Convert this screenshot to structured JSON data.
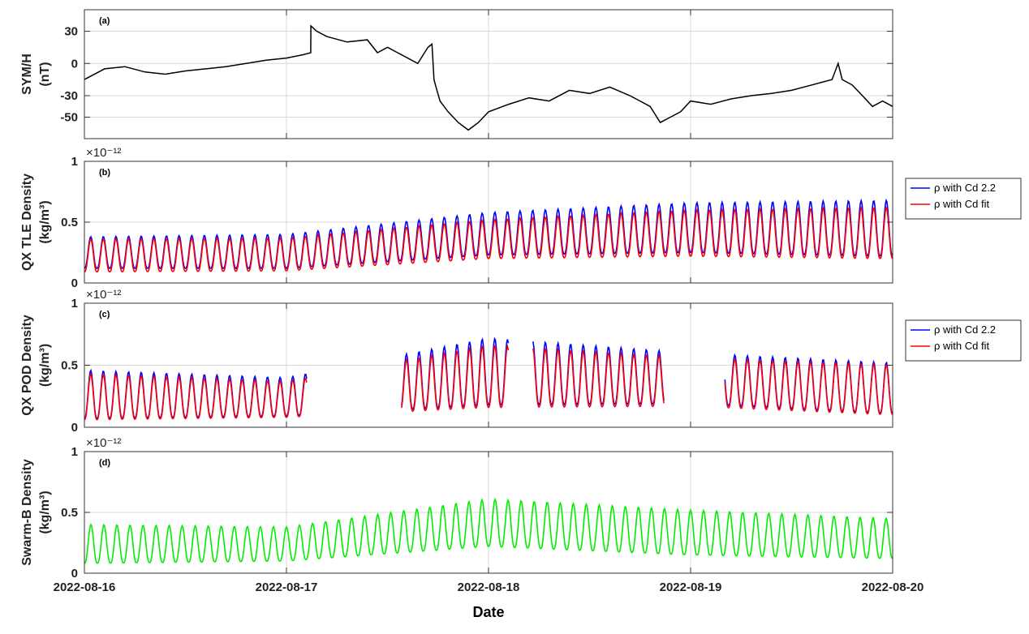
{
  "chart_data": [
    {
      "panel_label": "(a)",
      "type": "line",
      "ylabel": [
        "SYM/H",
        "(nT)"
      ],
      "ylim": [
        -70,
        50
      ],
      "yticks": [
        30,
        0,
        -30,
        -50
      ],
      "ytick_labels": [
        "30",
        "0",
        "-30",
        "-50"
      ],
      "x_range": [
        "2022-08-16",
        "2022-08-20"
      ],
      "xticks": [
        "2022-08-16",
        "2022-08-17",
        "2022-08-18",
        "2022-08-19",
        "2022-08-20"
      ],
      "grid": true,
      "series": [
        {
          "color": "#000000",
          "x_days": [
            0,
            0.1,
            0.2,
            0.3,
            0.4,
            0.5,
            0.6,
            0.7,
            0.8,
            0.9,
            1.0,
            1.08,
            1.12,
            1.121,
            1.15,
            1.2,
            1.3,
            1.4,
            1.45,
            1.5,
            1.55,
            1.6,
            1.65,
            1.7,
            1.72,
            1.73,
            1.74,
            1.76,
            1.8,
            1.85,
            1.9,
            1.95,
            2.0,
            2.1,
            2.2,
            2.3,
            2.4,
            2.5,
            2.6,
            2.7,
            2.8,
            2.85,
            2.9,
            2.95,
            3.0,
            3.1,
            3.2,
            3.3,
            3.4,
            3.5,
            3.6,
            3.7,
            3.72,
            3.73,
            3.75,
            3.8,
            3.85,
            3.9,
            3.95,
            4.0
          ],
          "y": [
            -15,
            -5,
            -3,
            -8,
            -10,
            -7,
            -5,
            -3,
            0,
            3,
            5,
            8,
            10,
            35,
            30,
            25,
            20,
            22,
            10,
            15,
            10,
            5,
            0,
            15,
            18,
            -15,
            -22,
            -35,
            -45,
            -55,
            -62,
            -55,
            -45,
            -38,
            -32,
            -35,
            -25,
            -28,
            -22,
            -30,
            -40,
            -55,
            -50,
            -45,
            -35,
            -38,
            -33,
            -30,
            -28,
            -25,
            -20,
            -15,
            -5,
            0,
            -15,
            -20,
            -30,
            -40,
            -35,
            -40
          ]
        }
      ]
    },
    {
      "panel_label": "(b)",
      "type": "line",
      "ylabel": [
        "QX TLE Density",
        "(kg/m³)"
      ],
      "exponent_label": "×10⁻¹²",
      "ylim": [
        0,
        1
      ],
      "yticks": [
        1,
        0.5,
        0
      ],
      "ytick_labels": [
        "1",
        "0.5",
        "0"
      ],
      "grid": true,
      "legend": [
        "ρ with Cd 2.2",
        "ρ with Cd fit"
      ],
      "legend_position": "outside-right",
      "series": [
        {
          "name": "ρ with Cd 2.2",
          "color": "#0000ff",
          "cycles_per_day": 16,
          "min": [
            0.12,
            0.12,
            0.23,
            0.25,
            0.22
          ],
          "max": [
            0.38,
            0.4,
            0.58,
            0.66,
            0.68
          ],
          "x_knots": [
            0,
            1,
            2,
            3,
            4
          ]
        },
        {
          "name": "ρ with Cd fit",
          "color": "#ff0000",
          "cycles_per_day": 16,
          "min": [
            0.09,
            0.1,
            0.2,
            0.22,
            0.2
          ],
          "max": [
            0.36,
            0.37,
            0.52,
            0.6,
            0.62
          ],
          "x_knots": [
            0,
            1,
            2,
            3,
            4
          ]
        }
      ]
    },
    {
      "panel_label": "(c)",
      "type": "line",
      "ylabel": [
        "QX POD Density",
        "(kg/m³)"
      ],
      "exponent_label": "×10⁻¹²",
      "ylim": [
        0,
        1
      ],
      "yticks": [
        1,
        0.5,
        0
      ],
      "ytick_labels": [
        "1",
        "0.5",
        "0"
      ],
      "grid": true,
      "legend": [
        "ρ with Cd 2.2",
        "ρ with Cd fit"
      ],
      "legend_position": "outside-right",
      "data_segments_days": [
        [
          0,
          1.1
        ],
        [
          1.57,
          2.1
        ],
        [
          2.22,
          2.87
        ],
        [
          3.17,
          4.0
        ]
      ],
      "series": [
        {
          "name": "ρ with Cd 2.2",
          "color": "#0000ff",
          "cycles_per_day": 16,
          "min": [
            0.07,
            0.09,
            0.18,
            0.19,
            0.11
          ],
          "max": [
            0.46,
            0.4,
            0.72,
            0.6,
            0.52
          ],
          "x_knots": [
            0,
            1,
            2,
            3,
            4
          ]
        },
        {
          "name": "ρ with Cd fit",
          "color": "#ff0000",
          "cycles_per_day": 16,
          "min": [
            0.06,
            0.08,
            0.16,
            0.17,
            0.1
          ],
          "max": [
            0.43,
            0.37,
            0.66,
            0.56,
            0.5
          ],
          "x_knots": [
            0,
            1,
            2,
            3,
            4
          ]
        }
      ]
    },
    {
      "panel_label": "(d)",
      "type": "line",
      "ylabel": [
        "Swarm-B Density",
        "(kg/m³)"
      ],
      "exponent_label": "×10⁻¹²",
      "ylim": [
        0,
        1
      ],
      "yticks": [
        1,
        0.5,
        0
      ],
      "ytick_labels": [
        "1",
        "0.5",
        "0"
      ],
      "grid": true,
      "series": [
        {
          "color": "#00ee00",
          "cycles_per_day": 15.5,
          "min": [
            0.08,
            0.1,
            0.22,
            0.15,
            0.12
          ],
          "max": [
            0.4,
            0.38,
            0.61,
            0.52,
            0.45
          ],
          "x_knots": [
            0,
            1,
            2,
            3,
            4
          ]
        }
      ]
    }
  ],
  "xlabel": "Date",
  "xtick_labels": [
    "2022-08-16",
    "2022-08-17",
    "2022-08-18",
    "2022-08-19",
    "2022-08-20"
  ]
}
